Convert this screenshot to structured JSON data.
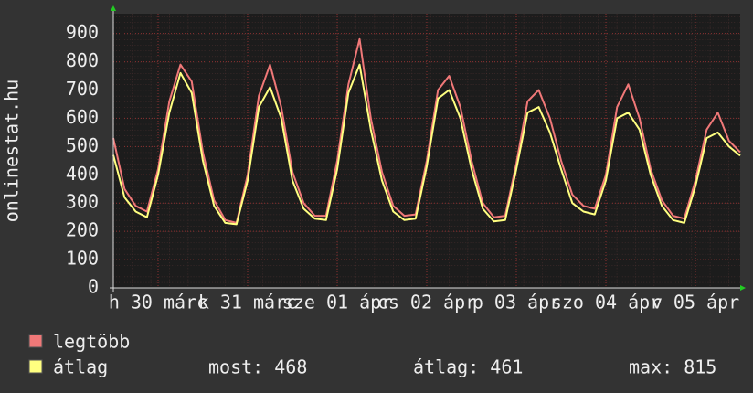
{
  "chart_data": {
    "type": "line",
    "y_label": "onlinestat.hu",
    "x": [
      0,
      3,
      6,
      9,
      12,
      15,
      18,
      21,
      24,
      27,
      30,
      33,
      36,
      39,
      42,
      45,
      48,
      51,
      54,
      57,
      60,
      63,
      66,
      69,
      72,
      75,
      78,
      81,
      84,
      87,
      90,
      93,
      96,
      99,
      102,
      105,
      108,
      111,
      114,
      117,
      120,
      123,
      126,
      129,
      132,
      135,
      138,
      141,
      144,
      147,
      150,
      153,
      156,
      159,
      162,
      165,
      168
    ],
    "xlim": [
      0,
      168
    ],
    "xticks": [
      {
        "value": 12,
        "label": "h 30 márc"
      },
      {
        "value": 36,
        "label": "k 31 márc"
      },
      {
        "value": 60,
        "label": "sze 01 ápr"
      },
      {
        "value": 84,
        "label": "cs 02 ápr"
      },
      {
        "value": 108,
        "label": "p 03 ápr"
      },
      {
        "value": 132,
        "label": "szo 04 ápr"
      },
      {
        "value": 156,
        "label": "v 05 ápr"
      }
    ],
    "ylim": [
      0,
      970
    ],
    "yticks": [
      0,
      100,
      200,
      300,
      400,
      500,
      600,
      700,
      800,
      900
    ],
    "grid": true,
    "series": [
      {
        "name": "legtöbb",
        "color": "#f07878",
        "values": [
          530,
          350,
          290,
          270,
          420,
          660,
          790,
          730,
          480,
          310,
          240,
          230,
          400,
          680,
          790,
          640,
          410,
          300,
          255,
          255,
          450,
          720,
          880,
          600,
          410,
          290,
          255,
          260,
          450,
          700,
          750,
          640,
          450,
          300,
          250,
          255,
          440,
          660,
          700,
          600,
          450,
          330,
          290,
          280,
          400,
          640,
          720,
          600,
          420,
          310,
          255,
          245,
          380,
          560,
          620,
          520,
          480
        ]
      },
      {
        "name": "átlag",
        "color": "#ffff80",
        "values": [
          470,
          320,
          270,
          250,
          400,
          620,
          760,
          690,
          450,
          290,
          230,
          225,
          380,
          640,
          710,
          600,
          380,
          280,
          245,
          240,
          420,
          690,
          790,
          560,
          380,
          270,
          240,
          245,
          430,
          670,
          700,
          600,
          420,
          280,
          235,
          240,
          420,
          620,
          640,
          550,
          420,
          300,
          270,
          260,
          380,
          600,
          620,
          560,
          400,
          290,
          240,
          230,
          360,
          530,
          550,
          500,
          468
        ]
      }
    ],
    "stats": [
      "most: 468",
      "átlag: 461",
      "max: 815"
    ]
  }
}
